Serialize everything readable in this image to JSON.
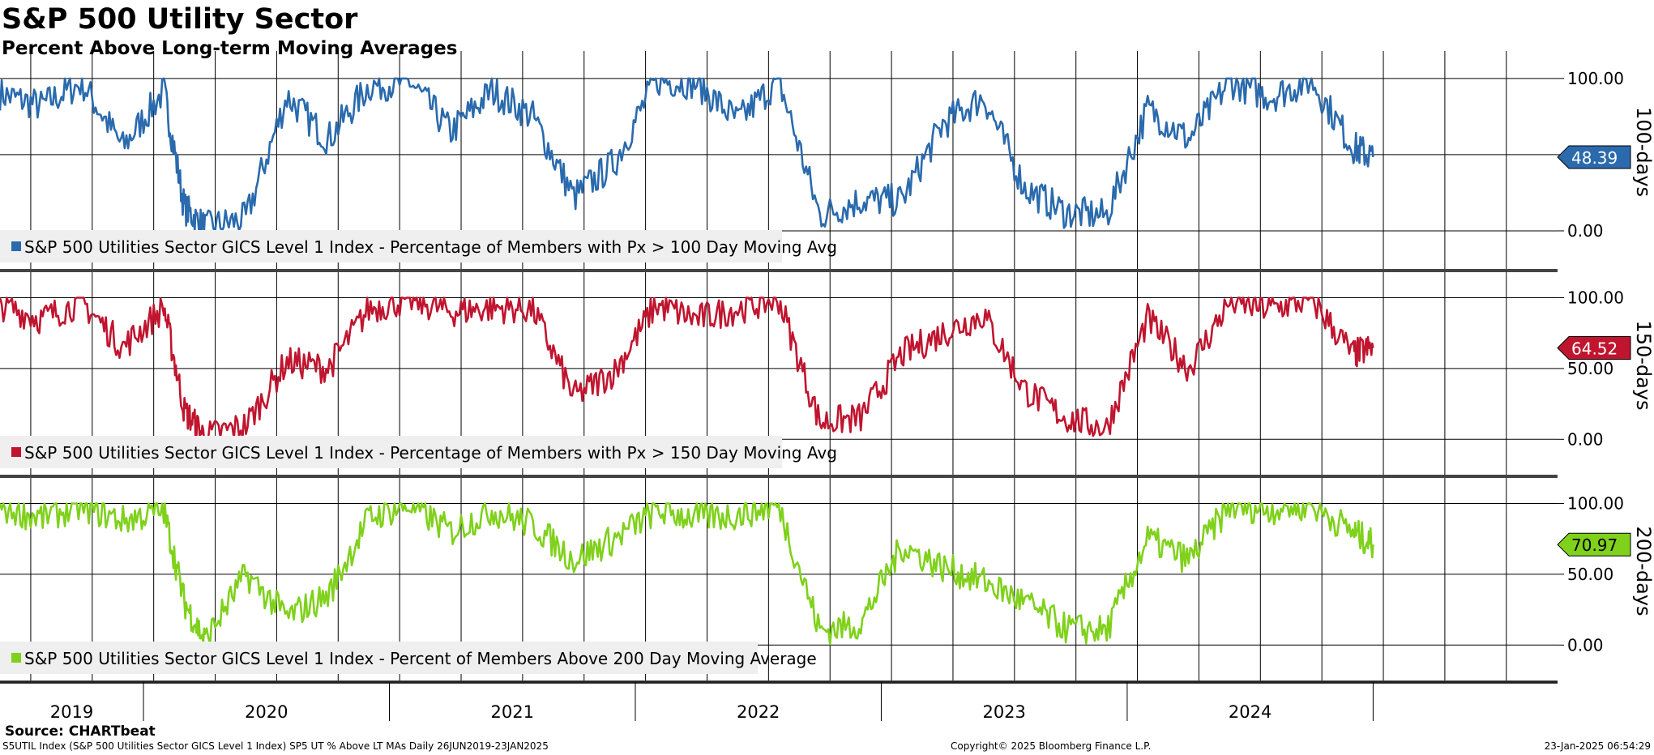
{
  "header": {
    "title": "S&P 500 Utility Sector",
    "subtitle": "Percent Above Long-term Moving Averages"
  },
  "footer": {
    "source": "Source: CHARTbeat",
    "description": "S5UTIL Index (S&P 500 Utilities Sector GICS Level 1 Index) SP5 UT % Above LT MAs  Daily 26JUN2019-23JAN2025",
    "copyright": "Copyright© 2025 Bloomberg Finance L.P.",
    "timestamp": "23-Jan-2025 06:54:29"
  },
  "colors": {
    "series_100": "#2a6aad",
    "series_150": "#c0152f",
    "series_200": "#7fd11b",
    "grid": "#000000",
    "legend_bg": "#efefef"
  },
  "chart_data": [
    {
      "type": "line",
      "panel_label": "100-days",
      "legend": "S&P 500 Utilities Sector GICS Level 1 Index - Percentage of Members with Px > 100 Day Moving Avg",
      "last_value": "48.39",
      "y_ticks": [
        "100.00",
        "0.00"
      ],
      "ylim": [
        -25,
        118
      ],
      "x": [
        "2019-06",
        "2019-08",
        "2019-10",
        "2019-12",
        "2020-02",
        "2020-03",
        "2020-04",
        "2020-06",
        "2020-08",
        "2020-10",
        "2020-12",
        "2021-02",
        "2021-04",
        "2021-06",
        "2021-08",
        "2021-10",
        "2021-12",
        "2022-02",
        "2022-04",
        "2022-06",
        "2022-08",
        "2022-10",
        "2022-12",
        "2023-02",
        "2023-04",
        "2023-06",
        "2023-08",
        "2023-10",
        "2023-12",
        "2024-02",
        "2024-04",
        "2024-06",
        "2024-08",
        "2024-10",
        "2024-12",
        "2025-01"
      ],
      "values": [
        90,
        82,
        97,
        55,
        92,
        15,
        2,
        8,
        88,
        60,
        95,
        98,
        65,
        92,
        75,
        22,
        45,
        99,
        97,
        72,
        99,
        10,
        20,
        20,
        70,
        88,
        28,
        12,
        10,
        80,
        60,
        98,
        88,
        99,
        55,
        48.39
      ]
    },
    {
      "type": "line",
      "panel_label": "150-days",
      "legend": "S&P 500 Utilities Sector GICS Level 1 Index - Percentage of Members with Px > 150 Day Moving Avg",
      "last_value": "64.52",
      "y_ticks": [
        "100.00",
        "50.00",
        "0.00"
      ],
      "ylim": [
        -25,
        118
      ],
      "x": [
        "2019-06",
        "2019-08",
        "2019-10",
        "2019-12",
        "2020-02",
        "2020-03",
        "2020-04",
        "2020-06",
        "2020-08",
        "2020-10",
        "2020-12",
        "2021-02",
        "2021-04",
        "2021-06",
        "2021-08",
        "2021-10",
        "2021-12",
        "2022-02",
        "2022-04",
        "2022-06",
        "2022-08",
        "2022-10",
        "2022-12",
        "2023-02",
        "2023-04",
        "2023-06",
        "2023-08",
        "2023-10",
        "2023-12",
        "2024-02",
        "2024-04",
        "2024-06",
        "2024-08",
        "2024-10",
        "2024-12",
        "2025-01"
      ],
      "values": [
        95,
        85,
        97,
        65,
        93,
        20,
        2,
        10,
        55,
        50,
        92,
        99,
        90,
        93,
        92,
        30,
        48,
        95,
        85,
        92,
        99,
        12,
        15,
        60,
        75,
        88,
        35,
        15,
        8,
        85,
        50,
        97,
        92,
        99,
        60,
        64.52
      ]
    },
    {
      "type": "line",
      "panel_label": "200-days",
      "legend": "S&P 500 Utilities Sector GICS Level 1 Index - Percent of Members Above 200 Day Moving Average",
      "last_value": "70.97",
      "y_ticks": [
        "100.00",
        "50.00",
        "0.00"
      ],
      "ylim": [
        -25,
        118
      ],
      "x": [
        "2019-06",
        "2019-08",
        "2019-10",
        "2019-12",
        "2020-02",
        "2020-03",
        "2020-04",
        "2020-06",
        "2020-08",
        "2020-10",
        "2020-12",
        "2021-02",
        "2021-04",
        "2021-06",
        "2021-08",
        "2021-10",
        "2021-12",
        "2022-02",
        "2022-04",
        "2022-06",
        "2022-08",
        "2022-10",
        "2022-12",
        "2023-02",
        "2023-04",
        "2023-06",
        "2023-08",
        "2023-10",
        "2023-12",
        "2024-02",
        "2024-04",
        "2024-06",
        "2024-08",
        "2024-10",
        "2024-12",
        "2025-01"
      ],
      "values": [
        97,
        90,
        98,
        88,
        95,
        30,
        3,
        50,
        20,
        35,
        90,
        99,
        80,
        95,
        85,
        60,
        75,
        95,
        90,
        92,
        99,
        10,
        15,
        70,
        55,
        45,
        30,
        12,
        10,
        75,
        60,
        98,
        96,
        99,
        80,
        70.97
      ]
    }
  ],
  "x_axis": {
    "year_labels": [
      "2019",
      "2020",
      "2021",
      "2022",
      "2023",
      "2024"
    ]
  }
}
